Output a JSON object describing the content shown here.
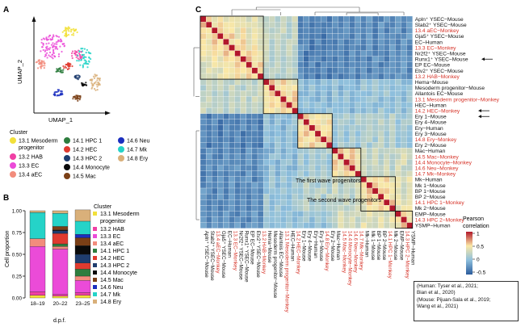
{
  "panels": {
    "a": "A",
    "b": "B",
    "c": "C"
  },
  "umap": {
    "ylabel": "UMAP_2",
    "xlabel": "UMAP_1",
    "legend_title": "Cluster",
    "clusters": [
      {
        "label": "13.1 Mesoderm progenitor",
        "line1": "13.1 Mesoderm",
        "line2": "progenitor",
        "color": "#f2e03a"
      },
      {
        "label": "13.2 HAB",
        "color": "#f03fa4"
      },
      {
        "label": "13.3 EC",
        "color": "#eb4bd8"
      },
      {
        "label": "13.4 aEC",
        "color": "#f28c7c"
      },
      {
        "label": "14.1 HPC 1",
        "color": "#2e7d3e"
      },
      {
        "label": "14.2 HEC",
        "color": "#e03a2f"
      },
      {
        "label": "14.3 HPC 2",
        "color": "#1f3d6e"
      },
      {
        "label": "14.4 Monocyte",
        "color": "#0a0a0a"
      },
      {
        "label": "14.5 Mac",
        "color": "#7a3f16"
      },
      {
        "label": "14.6 Neu",
        "color": "#1b2fbf"
      },
      {
        "label": "14.7 Mk",
        "color": "#25d3c8"
      },
      {
        "label": "14.8 Ery",
        "color": "#d9b07a"
      }
    ]
  },
  "bar": {
    "ylabel": "Cell proportion",
    "xlabel": "d.p.f.",
    "ticks": [
      "0.00",
      "0.25",
      "0.50",
      "0.75",
      "1.00"
    ],
    "categories": [
      "18–19",
      "20–22",
      "23–25"
    ],
    "legend_title": "Cluster"
  },
  "chart_data": [
    {
      "type": "bar",
      "stacked": true,
      "categories": [
        "18–19",
        "20–22",
        "23–25"
      ],
      "ylabel": "Cell proportion",
      "xlabel": "d.p.f.",
      "ylim": [
        0,
        1
      ],
      "series": [
        {
          "name": "13.1 Mesoderm progenitor",
          "values": [
            0.03,
            0.02,
            0.03
          ]
        },
        {
          "name": "13.2 HAB",
          "values": [
            0.04,
            0.02,
            0.03
          ]
        },
        {
          "name": "13.3 EC",
          "values": [
            0.52,
            0.52,
            0.14
          ]
        },
        {
          "name": "13.4 aEC",
          "values": [
            0.09,
            0.03,
            0.05
          ]
        },
        {
          "name": "14.1 HPC 1",
          "values": [
            0.0,
            0.03,
            0.08
          ]
        },
        {
          "name": "14.2 HEC",
          "values": [
            0.0,
            0.12,
            0.07
          ]
        },
        {
          "name": "14.3 HPC 2",
          "values": [
            0.0,
            0.03,
            0.1
          ]
        },
        {
          "name": "14.4 Monocyte",
          "values": [
            0.0,
            0.01,
            0.1
          ]
        },
        {
          "name": "14.5 Mac",
          "values": [
            0.0,
            0.04,
            0.09
          ]
        },
        {
          "name": "14.6 Neu",
          "values": [
            0.0,
            0.0,
            0.04
          ]
        },
        {
          "name": "14.7 Mk",
          "values": [
            0.3,
            0.15,
            0.15
          ]
        },
        {
          "name": "14.8 Ery",
          "values": [
            0.02,
            0.03,
            0.13
          ]
        }
      ]
    },
    {
      "type": "heatmap",
      "legend_title": "Pearson correlation",
      "colorbar_ticks": [
        "1",
        "0.5",
        "0",
        "-0.5"
      ],
      "range": [
        -0.5,
        1
      ],
      "rows": [
        {
          "name": "Apln⁺ YSEC−Mouse",
          "monkey": false,
          "group": 0
        },
        {
          "name": "Stab2⁺ YSEC−Mouse",
          "monkey": false,
          "group": 0
        },
        {
          "name": "13.4 aEC−Monkey",
          "monkey": true,
          "group": 0
        },
        {
          "name": "Gja5⁺ YSEC−Mouse",
          "monkey": false,
          "group": 0
        },
        {
          "name": "EC−Human",
          "monkey": false,
          "group": 0
        },
        {
          "name": "13.3 EC−Monkey",
          "monkey": true,
          "group": 0
        },
        {
          "name": "Nr2f2⁺ YSEC−Mouse",
          "monkey": false,
          "group": 0
        },
        {
          "name": "Runx1⁺ YSEC−Mouse",
          "monkey": false,
          "group": 0
        },
        {
          "name": "EP EC−Mouse",
          "monkey": false,
          "group": 0
        },
        {
          "name": "Etv2⁺ YSEC−Mouse",
          "monkey": false,
          "group": 0
        },
        {
          "name": "13.2 HAB−Monkey",
          "monkey": true,
          "group": 0
        },
        {
          "name": "Hema−Mouse",
          "monkey": false,
          "group": 1
        },
        {
          "name": "Mesoderm progenitor−Mouse",
          "monkey": false,
          "group": 1
        },
        {
          "name": "Allantois EC−Mouse",
          "monkey": false,
          "group": 1
        },
        {
          "name": "13.1 Mesoderm progenitor−Monkey",
          "monkey": true,
          "group": 1
        },
        {
          "name": "HEC−Human",
          "monkey": false,
          "group": 1
        },
        {
          "name": "14.2 HEC−Monkey",
          "monkey": true,
          "group": 1
        },
        {
          "name": "Ery 1−Mouse",
          "monkey": false,
          "group": 2
        },
        {
          "name": "Ery 4−Mouse",
          "monkey": false,
          "group": 2
        },
        {
          "name": "Ery−Human",
          "monkey": false,
          "group": 2
        },
        {
          "name": "Ery 3−Mouse",
          "monkey": false,
          "group": 2
        },
        {
          "name": "14.8 Ery−Monkey",
          "monkey": true,
          "group": 2
        },
        {
          "name": "Ery 2−Mouse",
          "monkey": false,
          "group": 2
        },
        {
          "name": "Mac−Human",
          "monkey": false,
          "group": 3
        },
        {
          "name": "14.5 Mac−Monkey",
          "monkey": true,
          "group": 3
        },
        {
          "name": "14.4 Monocyte−Monkey",
          "monkey": true,
          "group": 3
        },
        {
          "name": "14.6 Neu−Monkey",
          "monkey": true,
          "group": 3
        },
        {
          "name": "14.7 Mk−Monkey",
          "monkey": true,
          "group": 3
        },
        {
          "name": "Mk−Human",
          "monkey": false,
          "group": 4
        },
        {
          "name": "Mk 1−Mouse",
          "monkey": false,
          "group": 4
        },
        {
          "name": "BP 1−Mouse",
          "monkey": false,
          "group": 4
        },
        {
          "name": "BP 2−Mouse",
          "monkey": false,
          "group": 4
        },
        {
          "name": "14.1 HPC 1−Monkey",
          "monkey": true,
          "group": 4
        },
        {
          "name": "Mk 2−Mouse",
          "monkey": false,
          "group": 4
        },
        {
          "name": "EMP−Mouse",
          "monkey": false,
          "group": 5
        },
        {
          "name": "14.3 HPC 2−Monkey",
          "monkey": true,
          "group": 5
        },
        {
          "name": "YSMP−Human",
          "monkey": false,
          "group": 5
        }
      ],
      "annotations": [
        "The first wave progenitors",
        "The second wave progenitors"
      ]
    }
  ],
  "colorbar": {
    "title1": "Pearson",
    "title2": "correlation",
    "ticks": [
      "1",
      "0.5",
      "0",
      "-0.5"
    ]
  },
  "annotations": {
    "first_wave": "The first wave progenitors",
    "second_wave": "The second wave progenitors"
  },
  "citation": {
    "line1": "(Human: Tyser et al., 2021;",
    "line2": "Bian et al., 2020)",
    "line3": "(Mouse: Pijuan-Sala et al., 2019;",
    "line4": "Wang et al., 2021)"
  }
}
